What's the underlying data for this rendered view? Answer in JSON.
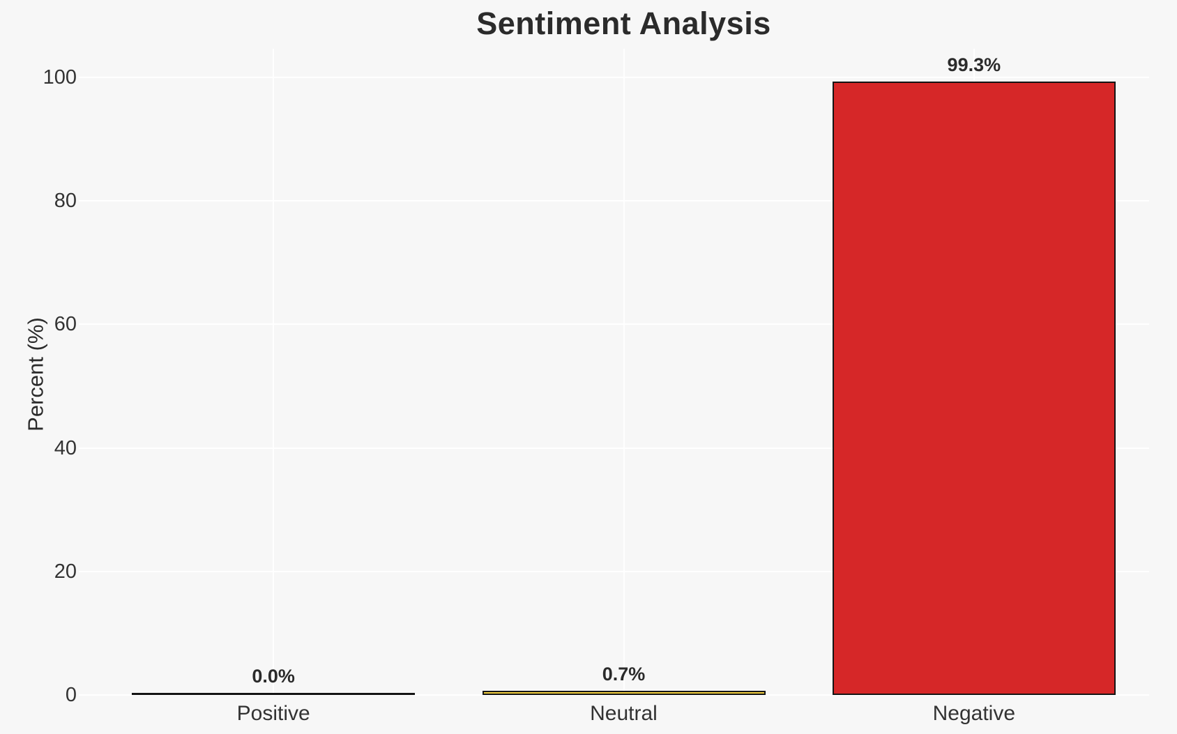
{
  "chart_data": {
    "type": "bar",
    "title": "Sentiment Analysis",
    "xlabel": "",
    "ylabel": "Percent (%)",
    "categories": [
      "Positive",
      "Neutral",
      "Negative"
    ],
    "values": [
      0.0,
      0.7,
      99.3
    ],
    "value_labels": [
      "0.0%",
      "0.7%",
      "99.3%"
    ],
    "bar_colors": [
      null,
      "#f4d03f",
      "#d62728"
    ],
    "bar_edge_color": "#141414",
    "yticks": [
      0,
      20,
      40,
      60,
      80,
      100
    ],
    "ylim": [
      0,
      104.6
    ],
    "grid": true,
    "legend": false,
    "colors": {
      "figure_background": "#f7f7f7",
      "gridline": "#ffffff",
      "text": "#2b2b2b",
      "tick_text": "#333333"
    }
  }
}
